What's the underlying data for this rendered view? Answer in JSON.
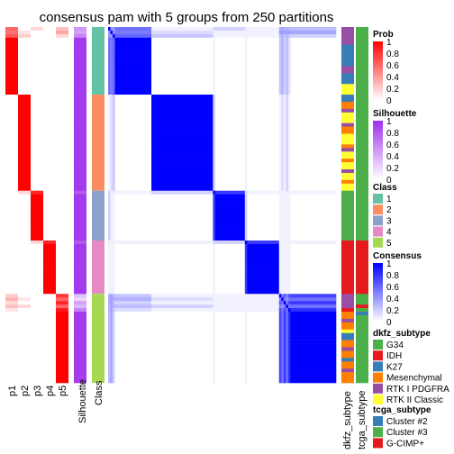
{
  "chart_data": {
    "type": "heatmap",
    "title": "consensus pam with 5 groups from 250 partitions",
    "n_samples": 100,
    "prob_columns": [
      "p1",
      "p2",
      "p3",
      "p4",
      "p5"
    ],
    "column_labels": {
      "silhouette": "Silhouette",
      "class": "Class",
      "dkfz": "dkfz_subtype",
      "tcga": "tcga_subtype"
    },
    "groups": [
      {
        "class": 1,
        "start": 0,
        "end": 19
      },
      {
        "class": 2,
        "start": 19,
        "end": 46
      },
      {
        "class": 3,
        "start": 46,
        "end": 60
      },
      {
        "class": 4,
        "start": 60,
        "end": 75
      },
      {
        "class": 5,
        "start": 75,
        "end": 100
      }
    ],
    "mixed_rows": [
      {
        "row": 0,
        "probs": [
          0.6,
          0.0,
          0.15,
          0.0,
          0.25
        ],
        "silhouette": 0.5
      },
      {
        "row": 1,
        "probs": [
          0.55,
          0.1,
          0.0,
          0.0,
          0.35
        ],
        "silhouette": 0.45
      },
      {
        "row": 2,
        "probs": [
          0.65,
          0.2,
          0.0,
          0.0,
          0.15
        ],
        "silhouette": 0.6
      },
      {
        "row": 46,
        "probs": [
          0.0,
          0.15,
          0.85,
          0.0,
          0.0
        ],
        "silhouette": 0.8
      },
      {
        "row": 60,
        "probs": [
          0.0,
          0.0,
          0.15,
          0.85,
          0.0
        ],
        "silhouette": 0.8
      },
      {
        "row": 75,
        "probs": [
          0.2,
          0.0,
          0.0,
          0.0,
          0.8
        ],
        "silhouette": 0.3
      },
      {
        "row": 76,
        "probs": [
          0.3,
          0.1,
          0.0,
          0.0,
          0.6
        ],
        "silhouette": 0.2
      },
      {
        "row": 77,
        "probs": [
          0.15,
          0.0,
          0.0,
          0.0,
          0.85
        ],
        "silhouette": 0.45
      },
      {
        "row": 78,
        "probs": [
          0.25,
          0.15,
          0.0,
          0.0,
          0.6
        ],
        "silhouette": 0.35
      },
      {
        "row": 79,
        "probs": [
          0.1,
          0.0,
          0.0,
          0.0,
          0.9
        ],
        "silhouette": 0.6
      }
    ],
    "dkfz_order": [
      "G34",
      "IDH",
      "K27",
      "Mesenchymal",
      "RTK I PDGFRA",
      "RTK II Classic"
    ],
    "dkfz_runs": [
      [
        0,
        5,
        "RTK I PDGFRA"
      ],
      [
        5,
        6,
        "K27"
      ],
      [
        6,
        11,
        "K27"
      ],
      [
        11,
        13,
        "RTK I PDGFRA"
      ],
      [
        13,
        16,
        "K27"
      ],
      [
        16,
        19,
        "RTK II Classic"
      ],
      [
        19,
        21,
        "K27"
      ],
      [
        21,
        23,
        "Mesenchymal"
      ],
      [
        23,
        24,
        "RTK I PDGFRA"
      ],
      [
        24,
        27,
        "RTK II Classic"
      ],
      [
        27,
        28,
        "RTK I PDGFRA"
      ],
      [
        28,
        30,
        "Mesenchymal"
      ],
      [
        30,
        33,
        "RTK II Classic"
      ],
      [
        33,
        34,
        "Mesenchymal"
      ],
      [
        34,
        35,
        "RTK I PDGFRA"
      ],
      [
        35,
        37,
        "RTK II Classic"
      ],
      [
        37,
        38,
        "Mesenchymal"
      ],
      [
        38,
        40,
        "RTK II Classic"
      ],
      [
        40,
        41,
        "RTK I PDGFRA"
      ],
      [
        41,
        43,
        "RTK II Classic"
      ],
      [
        43,
        44,
        "Mesenchymal"
      ],
      [
        44,
        46,
        "RTK II Classic"
      ],
      [
        46,
        60,
        "G34"
      ],
      [
        60,
        75,
        "IDH"
      ],
      [
        75,
        79,
        "RTK I PDGFRA"
      ],
      [
        79,
        80,
        "IDH"
      ],
      [
        80,
        82,
        "Mesenchymal"
      ],
      [
        82,
        83,
        "RTK I PDGFRA"
      ],
      [
        83,
        85,
        "Mesenchymal"
      ],
      [
        85,
        86,
        "RTK II Classic"
      ],
      [
        86,
        88,
        "K27"
      ],
      [
        88,
        90,
        "Mesenchymal"
      ],
      [
        90,
        91,
        "RTK I PDGFRA"
      ],
      [
        91,
        93,
        "Mesenchymal"
      ],
      [
        93,
        94,
        "K27"
      ],
      [
        94,
        96,
        "Mesenchymal"
      ],
      [
        96,
        97,
        "RTK I PDGFRA"
      ],
      [
        97,
        100,
        "Mesenchymal"
      ]
    ],
    "tcga_order": [
      "Cluster #2",
      "Cluster #3",
      "G-CIMP+"
    ],
    "tcga_runs": [
      [
        0,
        60,
        "Cluster #3"
      ],
      [
        60,
        75,
        "G-CIMP+"
      ],
      [
        75,
        78,
        "Cluster #3"
      ],
      [
        78,
        79,
        "G-CIMP+"
      ],
      [
        79,
        80,
        "Cluster #3"
      ],
      [
        80,
        81,
        "Cluster #2"
      ],
      [
        81,
        100,
        "Cluster #3"
      ]
    ],
    "legends": {
      "prob": {
        "title": "Prob",
        "ticks": [
          "1",
          "0.8",
          "0.6",
          "0.4",
          "0.2",
          "0"
        ]
      },
      "silhouette": {
        "title": "Silhouette",
        "ticks": [
          "1",
          "0.8",
          "0.6",
          "0.4",
          "0.2",
          "0"
        ]
      },
      "class": {
        "title": "Class",
        "items": [
          "1",
          "2",
          "3",
          "4",
          "5"
        ]
      },
      "consensus": {
        "title": "Consensus",
        "ticks": [
          "1",
          "0.8",
          "0.6",
          "0.4",
          "0.2",
          "0"
        ]
      },
      "dkfz": {
        "title": "dkfz_subtype",
        "items": [
          "G34",
          "IDH",
          "K27",
          "Mesenchymal",
          "RTK I PDGFRA",
          "RTK II Classic"
        ]
      },
      "tcga": {
        "title": "tcga_subtype",
        "items": [
          "Cluster #2",
          "Cluster #3",
          "G-CIMP+"
        ]
      }
    }
  },
  "colors": {
    "class": [
      "#66C2A5",
      "#FC8D62",
      "#8DA0CB",
      "#E78AC3",
      "#A6D854"
    ],
    "prob_low": "#FFFFFF",
    "prob_high": "#FF0000",
    "sil_low": "#FFFFFF",
    "sil_high": "#9F30EC",
    "cons_low": "#FFFFFF",
    "cons_high": "#0000FF",
    "dkfz": {
      "G34": "#4DAF4A",
      "IDH": "#E41A1C",
      "K27": "#377EB8",
      "Mesenchymal": "#FF7F00",
      "RTK I PDGFRA": "#984EA3",
      "RTK II Classic": "#FFFF33"
    },
    "tcga": {
      "Cluster #2": "#377EB8",
      "Cluster #3": "#4DAF4A",
      "G-CIMP+": "#E41A1C"
    }
  }
}
